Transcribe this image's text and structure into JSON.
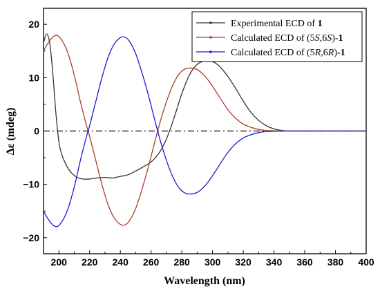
{
  "chart_data": {
    "type": "line",
    "title": "",
    "xlabel": "Wavelength (nm)",
    "ylabel": "Δε (mdeg)",
    "xlim": [
      190,
      400
    ],
    "ylim": [
      -23,
      23
    ],
    "x_ticks": [
      200,
      220,
      240,
      260,
      280,
      300,
      320,
      340,
      360,
      380,
      400
    ],
    "y_ticks": [
      -20,
      -10,
      0,
      10,
      20
    ],
    "grid": false,
    "legend_position": "top-right",
    "zero_line_style": "dash-dot",
    "series": [
      {
        "key": "experimental",
        "name": "Experimental ECD of 1",
        "legend_parts": [
          {
            "text": "Experimental ECD of "
          },
          {
            "text": "1",
            "bold": true
          }
        ],
        "color": "#333333",
        "x": [
          190,
          192,
          194,
          196,
          198,
          200,
          202,
          205,
          208,
          212,
          216,
          220,
          225,
          230,
          235,
          240,
          245,
          250,
          255,
          260,
          265,
          270,
          275,
          280,
          285,
          290,
          295,
          300,
          305,
          310,
          315,
          320,
          325,
          330,
          335,
          340,
          345,
          350,
          355,
          360,
          365,
          370,
          380,
          390,
          400
        ],
        "y": [
          16.5,
          18.2,
          16.5,
          11.0,
          3.5,
          -2.0,
          -4.5,
          -6.5,
          -7.8,
          -8.7,
          -9.0,
          -9.0,
          -8.8,
          -8.7,
          -8.8,
          -8.5,
          -8.2,
          -7.5,
          -6.7,
          -5.8,
          -4.2,
          -1.5,
          2.5,
          7.0,
          10.5,
          12.5,
          13.1,
          13.0,
          12.0,
          10.2,
          8.0,
          5.6,
          3.5,
          2.0,
          1.0,
          0.4,
          0.1,
          0.0,
          0.0,
          0.0,
          0.0,
          0.0,
          0.0,
          0.0,
          0.0
        ]
      },
      {
        "key": "calc-5s6s",
        "name": "Calculated ECD of (5S,6S)-1",
        "legend_parts": [
          {
            "text": "Calculated ECD of (5"
          },
          {
            "text": "S",
            "italic": true
          },
          {
            "text": ",6"
          },
          {
            "text": "S",
            "italic": true
          },
          {
            "text": ")-"
          },
          {
            "text": "1",
            "bold": true
          }
        ],
        "color": "#a83c28",
        "x": [
          190,
          193,
          196,
          198,
          200,
          203,
          206,
          210,
          214,
          218,
          220,
          224,
          228,
          232,
          236,
          240,
          243,
          246,
          250,
          254,
          258,
          262,
          266,
          270,
          274,
          278,
          282,
          286,
          290,
          294,
          298,
          302,
          306,
          310,
          315,
          320,
          325,
          330,
          335,
          340,
          345,
          350,
          355,
          360,
          365,
          370,
          380,
          390,
          400
        ],
        "y": [
          15.0,
          16.5,
          17.6,
          17.9,
          17.7,
          16.5,
          14.5,
          10.5,
          5.5,
          1.0,
          -1.0,
          -5.5,
          -10.0,
          -13.8,
          -16.3,
          -17.5,
          -17.6,
          -16.8,
          -14.5,
          -11.0,
          -7.0,
          -2.5,
          1.8,
          5.5,
          8.5,
          10.6,
          11.6,
          11.8,
          11.5,
          10.6,
          9.2,
          7.5,
          5.7,
          4.0,
          2.4,
          1.3,
          0.7,
          0.3,
          0.1,
          0.05,
          0.0,
          0.0,
          0.0,
          0.0,
          0.0,
          0.0,
          0.0,
          0.0,
          0.0
        ]
      },
      {
        "key": "calc-5r6r",
        "name": "Calculated ECD of (5R,6R)-1",
        "legend_parts": [
          {
            "text": "Calculated ECD of (5"
          },
          {
            "text": "R",
            "italic": true
          },
          {
            "text": ",6"
          },
          {
            "text": "R",
            "italic": true
          },
          {
            "text": ")-"
          },
          {
            "text": "1",
            "bold": true
          }
        ],
        "color": "#1a1ad4",
        "x": [
          190,
          193,
          196,
          198,
          200,
          203,
          206,
          210,
          214,
          218,
          220,
          224,
          228,
          232,
          236,
          240,
          243,
          246,
          250,
          254,
          258,
          262,
          266,
          270,
          274,
          278,
          282,
          286,
          290,
          294,
          298,
          302,
          306,
          310,
          315,
          320,
          325,
          330,
          335,
          340,
          345,
          350,
          355,
          360,
          365,
          370,
          380,
          390,
          400
        ],
        "y": [
          -15.0,
          -16.5,
          -17.6,
          -17.9,
          -17.7,
          -16.5,
          -14.5,
          -10.5,
          -5.5,
          -1.0,
          1.0,
          5.5,
          10.0,
          13.8,
          16.3,
          17.5,
          17.6,
          16.8,
          14.5,
          11.0,
          7.0,
          2.5,
          -1.8,
          -5.5,
          -8.5,
          -10.6,
          -11.6,
          -11.8,
          -11.5,
          -10.6,
          -9.2,
          -7.5,
          -5.7,
          -4.0,
          -2.4,
          -1.3,
          -0.7,
          -0.3,
          -0.1,
          -0.05,
          0.0,
          0.0,
          0.0,
          0.0,
          0.0,
          0.0,
          0.0,
          0.0,
          0.0
        ]
      }
    ]
  }
}
